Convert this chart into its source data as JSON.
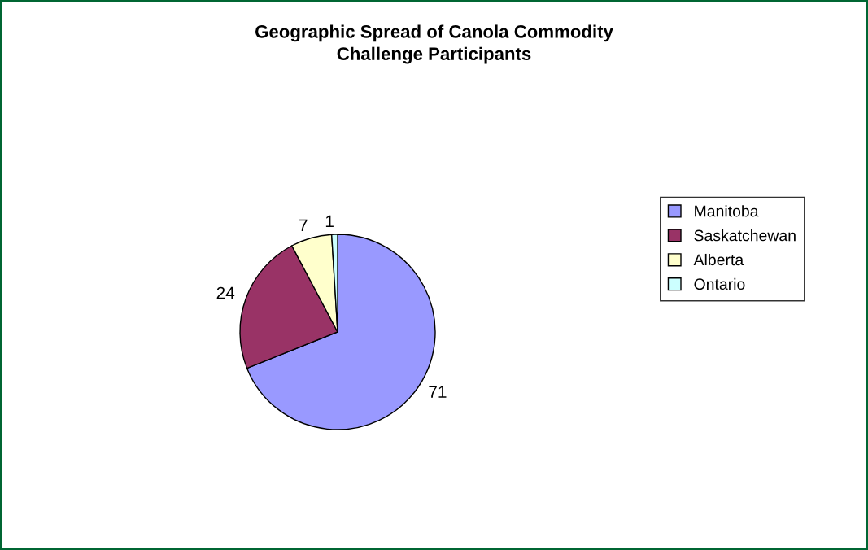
{
  "chart_data": {
    "type": "pie",
    "title": "Geographic Spread of Canola Commodity\nChallenge Participants",
    "categories": [
      "Manitoba",
      "Saskatchewan",
      "Alberta",
      "Ontario"
    ],
    "values": [
      71,
      24,
      7,
      1
    ],
    "colors": [
      "#9999ff",
      "#993366",
      "#ffffcc",
      "#ccffff"
    ],
    "data_labels": true,
    "legend": "right"
  }
}
